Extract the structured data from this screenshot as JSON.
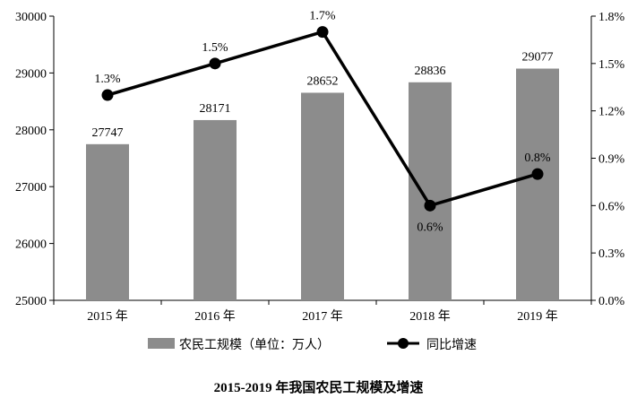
{
  "chart_data": {
    "type": "bar+line",
    "title": "2015-2019 年我国农民工规模及增速",
    "categories": [
      "2015 年",
      "2016 年",
      "2017 年",
      "2018 年",
      "2019 年"
    ],
    "bar_series": {
      "name": "农民工规模（单位：万人）",
      "values": [
        27747,
        28171,
        28652,
        28836,
        29077
      ],
      "value_labels": [
        "27747",
        "28171",
        "28652",
        "28836",
        "29077"
      ],
      "color": "#8c8c8c"
    },
    "line_series": {
      "name": "同比增速",
      "values": [
        1.3,
        1.5,
        1.7,
        0.6,
        0.8
      ],
      "value_labels": [
        "1.3%",
        "1.5%",
        "1.7%",
        "0.6%",
        "0.8%"
      ],
      "color": "#000000"
    },
    "y_left": {
      "range": [
        25000,
        30000
      ],
      "ticks": [
        25000,
        26000,
        27000,
        28000,
        29000,
        30000
      ],
      "tick_labels": [
        "25000",
        "26000",
        "27000",
        "28000",
        "29000",
        "30000"
      ]
    },
    "y_right": {
      "range": [
        0,
        1.8
      ],
      "ticks": [
        0,
        0.3,
        0.6,
        0.9,
        1.2,
        1.5,
        1.8
      ],
      "tick_labels": [
        "0.0%",
        "0.3%",
        "0.6%",
        "0.9%",
        "1.2%",
        "1.5%",
        "1.8%"
      ]
    },
    "grid": false,
    "legend_position": "bottom"
  }
}
